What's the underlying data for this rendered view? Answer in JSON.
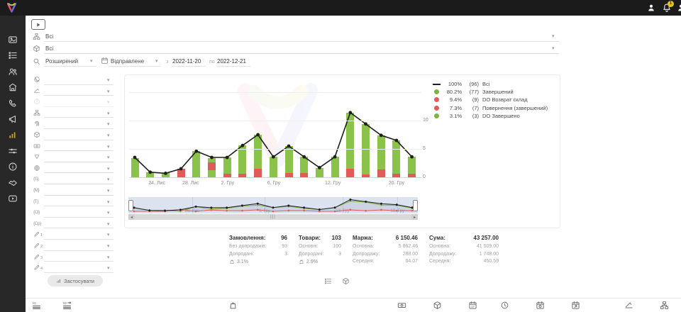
{
  "ui": {
    "caret": "▾",
    "arrow_left": "◂",
    "arrow_right": "▸",
    "grip": "|||"
  },
  "topbar": {
    "badge": "1",
    "icons": [
      "person",
      "bell",
      "person"
    ]
  },
  "sidebar": {
    "items": [
      {
        "icon": "image-card"
      },
      {
        "icon": "list"
      },
      {
        "icon": "users"
      },
      {
        "icon": "store"
      },
      {
        "icon": "phone"
      },
      {
        "icon": "megaphone"
      },
      {
        "icon": "bar-chart",
        "active": true
      },
      {
        "icon": "sliders"
      },
      {
        "icon": "info"
      },
      {
        "icon": "handshake"
      },
      {
        "icon": "video-play"
      }
    ]
  },
  "filters": {
    "row1": {
      "icon": "sitemap",
      "value": "Всі"
    },
    "row2": {
      "icon": "cube",
      "value": "Всі"
    },
    "advanced_label": "Розширений",
    "date_type": "Відправлене",
    "from_label": "з",
    "date_from": "2022-11-20",
    "to_label": "по",
    "date_to": "2022-12-21"
  },
  "filter_panel": {
    "apply_label": "Застосувати",
    "rows": [
      {
        "icon": "planet"
      },
      {
        "icon": "level"
      },
      {
        "icon": "help",
        "disabled": true
      },
      {
        "icon": "sitemap"
      },
      {
        "icon": "fingerprint"
      },
      {
        "icon": "cube"
      },
      {
        "icon": "banknote"
      },
      {
        "icon": "funnel"
      },
      {
        "icon": "globe"
      },
      {
        "icon": "tag",
        "text": "{S}"
      },
      {
        "icon": "tag",
        "text": "{M}"
      },
      {
        "icon": "tag",
        "text": "{T}"
      },
      {
        "icon": "tag",
        "text": "{Ct}"
      },
      {
        "icon": "tag",
        "text": "{Cp}"
      },
      {
        "icon": "pen",
        "sub": "1"
      },
      {
        "icon": "pen",
        "sub": "2"
      },
      {
        "icon": "pen",
        "sub": "3"
      },
      {
        "icon": "pen",
        "sub": "4"
      }
    ]
  },
  "chart_data": {
    "type": "bar",
    "subtype": "stacked bars of daily orders with total line overlay",
    "ylim": [
      0,
      12.5
    ],
    "y_ticks": [
      "0",
      "5",
      "10"
    ],
    "grid": true,
    "colors": {
      "completed": "#8bc34a",
      "returns": "#e15b5b",
      "total": "#1f1f1f"
    },
    "x_ticks": [
      {
        "label": "24. Лис",
        "pos": 0.095
      },
      {
        "label": "28. Лис",
        "pos": 0.211
      },
      {
        "label": "2. Гру",
        "pos": 0.337
      },
      {
        "label": "6. Гру",
        "pos": 0.495
      },
      {
        "label": "12. Гру",
        "pos": 0.697
      },
      {
        "label": "20. Гру",
        "pos": 0.915
      }
    ],
    "bars": [
      {
        "segments": [
          [
            "completed",
            3.4
          ]
        ],
        "total": 3.5
      },
      {
        "segments": [
          [
            "completed",
            0.9
          ]
        ],
        "total": 0.9
      },
      {
        "segments": [
          [
            "completed",
            0.7
          ]
        ],
        "total": 0.7
      },
      {
        "segments": [
          [
            "returns",
            1.5
          ]
        ],
        "total": 1.5
      },
      {
        "segments": [
          [
            "completed",
            4.6
          ]
        ],
        "total": 4.6
      },
      {
        "segments": [
          [
            "completed",
            1.3
          ],
          [
            "returns",
            1.3
          ],
          [
            "completed",
            0.8
          ]
        ],
        "total": 3.5
      },
      {
        "segments": [
          [
            "returns",
            0.6
          ],
          [
            "completed",
            2.9
          ]
        ],
        "total": 3.5
      },
      {
        "segments": [
          [
            "returns",
            0.6
          ],
          [
            "completed",
            5.0
          ]
        ],
        "total": 5.6
      },
      {
        "segments": [
          [
            "returns",
            1.5
          ],
          [
            "completed",
            6.0
          ]
        ],
        "total": 7.5
      },
      {
        "segments": [
          [
            "completed",
            3.6
          ]
        ],
        "total": 3.6
      },
      {
        "segments": [
          [
            "returns",
            0.7
          ],
          [
            "completed",
            4.8
          ]
        ],
        "total": 5.5
      },
      {
        "segments": [
          [
            "returns",
            0.7
          ],
          [
            "completed",
            2.9
          ]
        ],
        "total": 3.6
      },
      {
        "segments": [
          [
            "completed",
            1.6
          ]
        ],
        "total": 1.7
      },
      {
        "segments": [
          [
            "completed",
            3.6
          ]
        ],
        "total": 3.6
      },
      {
        "segments": [
          [
            "returns",
            1.5
          ],
          [
            "completed",
            9.9
          ]
        ],
        "total": 11.4
      },
      {
        "segments": [
          [
            "returns",
            0.5
          ],
          [
            "completed",
            8.9
          ]
        ],
        "total": 9.4
      },
      {
        "segments": [
          [
            "returns",
            1.4
          ],
          [
            "completed",
            6.0
          ]
        ],
        "total": 7.4
      },
      {
        "segments": [
          [
            "returns",
            0.6
          ],
          [
            "completed",
            5.9
          ]
        ],
        "total": 6.5
      },
      {
        "segments": [
          [
            "returns",
            0.6
          ],
          [
            "completed",
            3.0
          ]
        ],
        "total": 3.6
      }
    ],
    "legend": [
      {
        "type": "line",
        "color": "#1f1f1f",
        "pct": "100%",
        "count": "(96)",
        "label": "Всі"
      },
      {
        "type": "dot",
        "color": "#7cb342",
        "pct": "80.2%",
        "count": "(77)",
        "label": "Завершений"
      },
      {
        "type": "dot",
        "color": "#e15b5b",
        "pct": "9.4%",
        "count": "(9)",
        "label": "DO Возврат склад"
      },
      {
        "type": "dot",
        "color": "#e15b5b",
        "pct": "7.3%",
        "count": "(7)",
        "label": "Повернення (завершений)"
      },
      {
        "type": "dot",
        "color": "#7cb342",
        "pct": "3.1%",
        "count": "(3)",
        "label": "DO Завершено"
      }
    ],
    "mini": {
      "labels": [
        {
          "label": "28. Лис",
          "pos": 0.22
        },
        {
          "label": "6. Гру",
          "pos": 0.47
        },
        {
          "label": "13. Гру",
          "pos": 0.74
        },
        {
          "label": "18. Гру",
          "pos": 0.93
        }
      ]
    }
  },
  "stats": {
    "columns": [
      {
        "title": "Замовлення:",
        "value": "96",
        "rows": [
          {
            "label": "Без допродажів:",
            "value": "93"
          },
          {
            "label": "Допродані:",
            "value": "3"
          }
        ],
        "pct": "3.1%"
      },
      {
        "title": "Товари:",
        "value": "103",
        "rows": [
          {
            "label": "Основні:",
            "value": "100"
          },
          {
            "label": "Допродані:",
            "value": "3"
          }
        ],
        "pct": "2.9%"
      },
      {
        "title": "Маржа:",
        "value": "6 150.46",
        "rows": [
          {
            "label": "Основна:",
            "value": "5 862.46"
          },
          {
            "label": "Допродажу:",
            "value": "288.00"
          },
          {
            "label": "Середня:",
            "value": "64.07"
          }
        ]
      },
      {
        "title": "Сума:",
        "value": "43 257.00",
        "rows": [
          {
            "label": "Основна:",
            "value": "41 509.00"
          },
          {
            "label": "Допродажу:",
            "value": "1 748.00"
          },
          {
            "label": "Середня:",
            "value": "450.59"
          }
        ]
      }
    ]
  },
  "view_switch": {
    "icons": [
      "list",
      "cube"
    ]
  },
  "bottom_bar": {
    "left": [
      "id-list",
      "id-badge"
    ],
    "center": [
      "bag"
    ],
    "right": [
      "banknote",
      "cube",
      "calendar-grid",
      "clock",
      "calendar-b",
      "calendar-arrow",
      "level",
      "sitemap"
    ]
  }
}
